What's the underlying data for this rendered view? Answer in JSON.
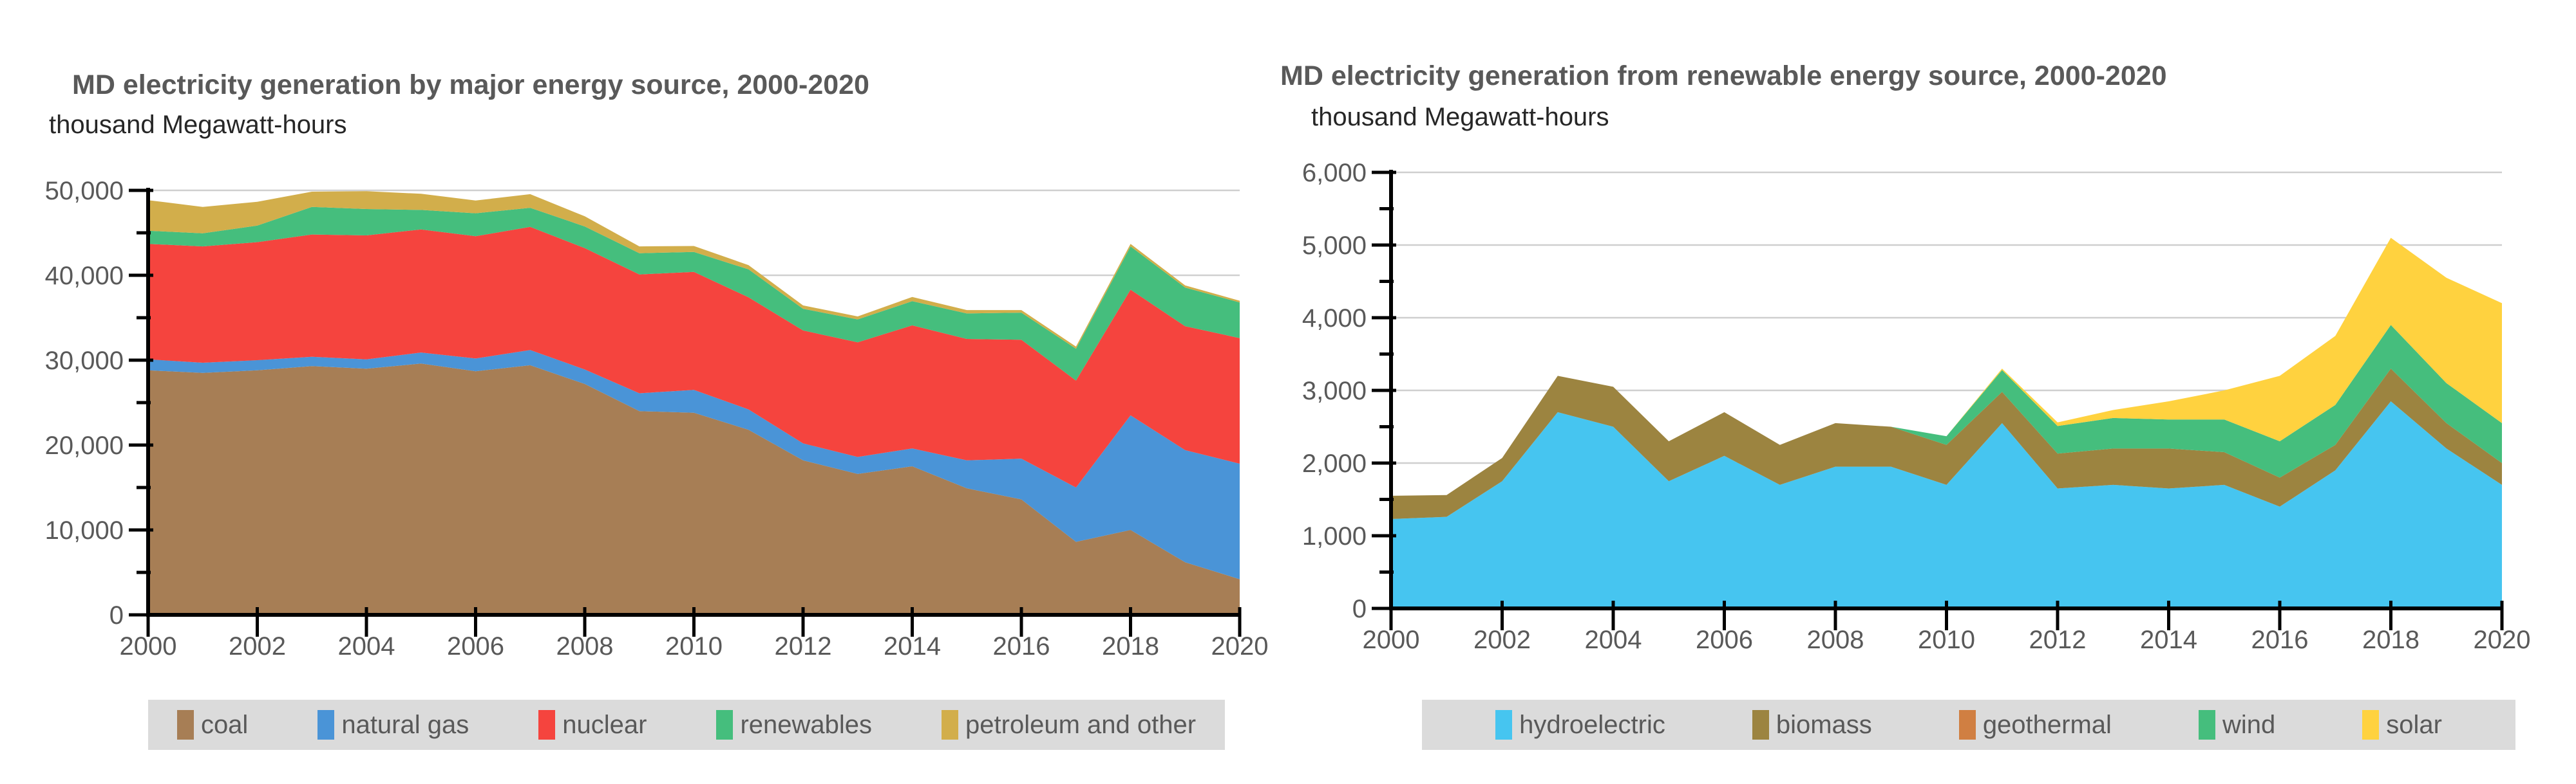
{
  "charts": [
    {
      "title": "MD electricity generation by major energy source, 2000-2020",
      "unit_label": "thousand Megawatt-hours",
      "chart_data": {
        "type": "area",
        "stacked": true,
        "grid": true,
        "legend_position": "bottom",
        "x": [
          2000,
          2001,
          2002,
          2003,
          2004,
          2005,
          2006,
          2007,
          2008,
          2009,
          2010,
          2011,
          2012,
          2013,
          2014,
          2015,
          2016,
          2017,
          2018,
          2019,
          2020
        ],
        "x_tick_labels": [
          "2000",
          "2002",
          "2004",
          "2006",
          "2008",
          "2010",
          "2012",
          "2014",
          "2016",
          "2018",
          "2020"
        ],
        "ylim": [
          0,
          50000
        ],
        "y_major_step": 10000,
        "y_minor_step": 5000,
        "y_tick_labels": [
          "0",
          "10,000",
          "20,000",
          "30,000",
          "40,000",
          "50,000"
        ],
        "series": [
          {
            "name": "coal",
            "color": "#A77E55",
            "values": [
              28800,
              28500,
              28800,
              29300,
              29000,
              29600,
              28700,
              29400,
              27200,
              24000,
              23800,
              21800,
              18200,
              16600,
              17500,
              14900,
              13600,
              8600,
              10000,
              6200,
              4200
            ]
          },
          {
            "name": "natural gas",
            "color": "#4A94D7",
            "values": [
              1300,
              1200,
              1200,
              1100,
              1100,
              1300,
              1500,
              1800,
              1700,
              2100,
              2700,
              2400,
              2000,
              2000,
              2100,
              3300,
              4800,
              6400,
              13500,
              13200,
              13600
            ]
          },
          {
            "name": "nuclear",
            "color": "#F5443E",
            "values": [
              13600,
              13700,
              13900,
              14400,
              14600,
              14500,
              14400,
              14500,
              14300,
              14000,
              13900,
              13200,
              13300,
              13500,
              14500,
              14300,
              14000,
              12600,
              14800,
              14600,
              14800
            ]
          },
          {
            "name": "renewables",
            "color": "#45BE7D",
            "values": [
              1550,
              1550,
              1950,
              3250,
              3100,
              2300,
              2700,
              2250,
              2550,
              2500,
              2350,
              3300,
              2550,
              2700,
              2850,
              3000,
              3200,
              3750,
              5100,
              4550,
              4200
            ]
          },
          {
            "name": "petroleum and other",
            "color": "#D2AE4B",
            "values": [
              3600,
              3100,
              2800,
              1800,
              2100,
              1900,
              1500,
              1600,
              1200,
              800,
              700,
              500,
              400,
              350,
              500,
              400,
              300,
              250,
              300,
              250,
              200
            ]
          }
        ]
      }
    },
    {
      "title": "MD electricity generation from renewable energy source, 2000-2020",
      "unit_label": "thousand Megawatt-hours",
      "chart_data": {
        "type": "area",
        "stacked": true,
        "grid": true,
        "legend_position": "bottom",
        "x": [
          2000,
          2001,
          2002,
          2003,
          2004,
          2005,
          2006,
          2007,
          2008,
          2009,
          2010,
          2011,
          2012,
          2013,
          2014,
          2015,
          2016,
          2017,
          2018,
          2019,
          2020
        ],
        "x_tick_labels": [
          "2000",
          "2002",
          "2004",
          "2006",
          "2008",
          "2010",
          "2012",
          "2014",
          "2016",
          "2018",
          "2020"
        ],
        "ylim": [
          0,
          6000
        ],
        "y_major_step": 1000,
        "y_minor_step": 500,
        "y_tick_labels": [
          "0",
          "1,000",
          "2,000",
          "3,000",
          "4,000",
          "5,000",
          "6,000"
        ],
        "series": [
          {
            "name": "hydroelectric",
            "color": "#46C5F0",
            "values": [
              1230,
              1260,
              1750,
              2700,
              2500,
              1750,
              2100,
              1700,
              1950,
              1950,
              1700,
              2550,
              1650,
              1700,
              1650,
              1700,
              1400,
              1900,
              2850,
              2200,
              1700
            ]
          },
          {
            "name": "biomass",
            "color": "#9C8440",
            "values": [
              320,
              300,
              320,
              500,
              550,
              550,
              600,
              550,
              600,
              550,
              550,
              430,
              480,
              500,
              550,
              450,
              400,
              350,
              450,
              350,
              300
            ]
          },
          {
            "name": "geothermal",
            "color": "#D07F42",
            "values": [
              0,
              0,
              0,
              0,
              0,
              0,
              0,
              0,
              0,
              0,
              0,
              0,
              0,
              0,
              0,
              0,
              0,
              0,
              0,
              0,
              0
            ]
          },
          {
            "name": "wind",
            "color": "#45BE7D",
            "values": [
              0,
              0,
              0,
              0,
              0,
              0,
              0,
              0,
              0,
              0,
              120,
              300,
              380,
              420,
              400,
              450,
              500,
              550,
              600,
              550,
              550
            ]
          },
          {
            "name": "solar",
            "color": "#FFD23F",
            "values": [
              0,
              0,
              0,
              0,
              0,
              0,
              0,
              0,
              0,
              0,
              0,
              20,
              50,
              110,
              250,
              400,
              900,
              950,
              1200,
              1450,
              1650
            ]
          }
        ]
      }
    }
  ]
}
